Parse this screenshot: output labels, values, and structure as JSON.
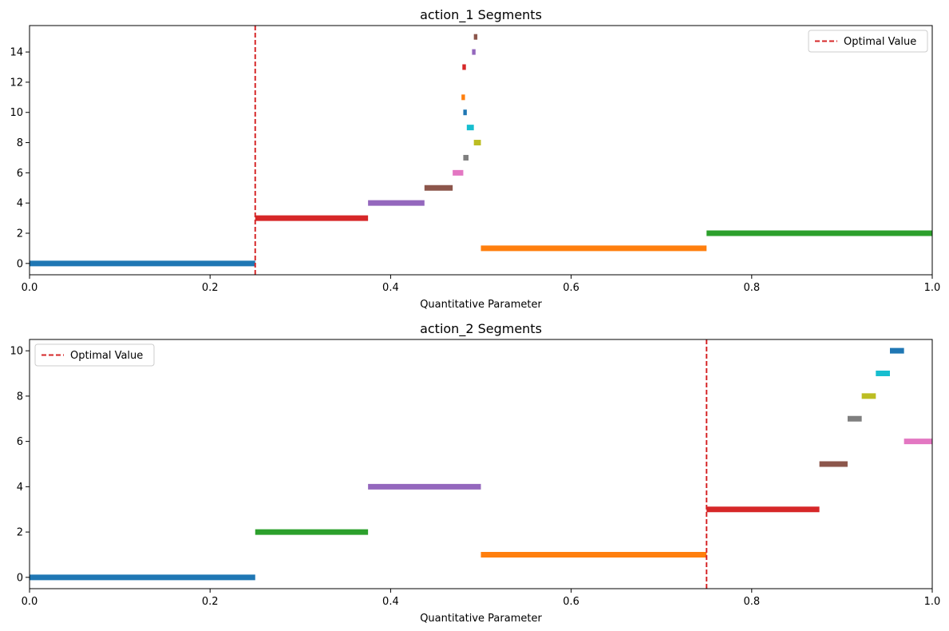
{
  "chart_data": [
    {
      "type": "segments",
      "title": "action_1 Segments",
      "xlabel": "Quantitative Parameter",
      "ylabel": "",
      "xlim": [
        0,
        1
      ],
      "ylim": [
        -0.75,
        15.75
      ],
      "xticks": [
        0,
        0.2,
        0.4,
        0.6,
        0.8,
        1.0
      ],
      "xtick_labels": [
        "0.0",
        "0.2",
        "0.4",
        "0.6",
        "0.8",
        "1.0"
      ],
      "yticks": [
        0,
        2,
        4,
        6,
        8,
        10,
        12,
        14
      ],
      "ytick_labels": [
        "0",
        "2",
        "4",
        "6",
        "8",
        "10",
        "12",
        "14"
      ],
      "grid": false,
      "legend_position": "upper-right",
      "reference_line": {
        "label": "Optimal Value",
        "x": 0.25,
        "color": "#d62728",
        "style": "dashed"
      },
      "segments": [
        {
          "y": 0,
          "x_start": 0.0,
          "x_end": 0.25,
          "color": "#1f77b4"
        },
        {
          "y": 1,
          "x_start": 0.5,
          "x_end": 0.75,
          "color": "#ff7f0e"
        },
        {
          "y": 2,
          "x_start": 0.75,
          "x_end": 1.0,
          "color": "#2ca02c"
        },
        {
          "y": 3,
          "x_start": 0.25,
          "x_end": 0.375,
          "color": "#d62728"
        },
        {
          "y": 4,
          "x_start": 0.375,
          "x_end": 0.4375,
          "color": "#9467bd"
        },
        {
          "y": 5,
          "x_start": 0.4375,
          "x_end": 0.46875,
          "color": "#8c564b"
        },
        {
          "y": 6,
          "x_start": 0.46875,
          "x_end": 0.4805,
          "color": "#e377c2"
        },
        {
          "y": 7,
          "x_start": 0.4805,
          "x_end": 0.4863,
          "color": "#7f7f7f"
        },
        {
          "y": 8,
          "x_start": 0.4922,
          "x_end": 0.5,
          "color": "#bcbd22"
        },
        {
          "y": 9,
          "x_start": 0.4844,
          "x_end": 0.4922,
          "color": "#17becf"
        },
        {
          "y": 10,
          "x_start": 0.4805,
          "x_end": 0.4844,
          "color": "#1f77b4"
        },
        {
          "y": 11,
          "x_start": 0.4785,
          "x_end": 0.4824,
          "color": "#ff7f0e"
        },
        {
          "y": 13,
          "x_start": 0.4795,
          "x_end": 0.4834,
          "color": "#d62728"
        },
        {
          "y": 14,
          "x_start": 0.4902,
          "x_end": 0.4941,
          "color": "#9467bd"
        },
        {
          "y": 15,
          "x_start": 0.4922,
          "x_end": 0.4961,
          "color": "#8c564b"
        }
      ]
    },
    {
      "type": "segments",
      "title": "action_2 Segments",
      "xlabel": "Quantitative Parameter",
      "ylabel": "",
      "xlim": [
        0,
        1
      ],
      "ylim": [
        -0.5,
        10.5
      ],
      "xticks": [
        0,
        0.2,
        0.4,
        0.6,
        0.8,
        1.0
      ],
      "xtick_labels": [
        "0.0",
        "0.2",
        "0.4",
        "0.6",
        "0.8",
        "1.0"
      ],
      "yticks": [
        0,
        2,
        4,
        6,
        8,
        10
      ],
      "ytick_labels": [
        "0",
        "2",
        "4",
        "6",
        "8",
        "10"
      ],
      "grid": false,
      "legend_position": "upper-left",
      "reference_line": {
        "label": "Optimal Value",
        "x": 0.75,
        "color": "#d62728",
        "style": "dashed"
      },
      "segments": [
        {
          "y": 0,
          "x_start": 0.0,
          "x_end": 0.25,
          "color": "#1f77b4"
        },
        {
          "y": 1,
          "x_start": 0.5,
          "x_end": 0.75,
          "color": "#ff7f0e"
        },
        {
          "y": 2,
          "x_start": 0.25,
          "x_end": 0.375,
          "color": "#2ca02c"
        },
        {
          "y": 3,
          "x_start": 0.75,
          "x_end": 0.875,
          "color": "#d62728"
        },
        {
          "y": 4,
          "x_start": 0.375,
          "x_end": 0.5,
          "color": "#9467bd"
        },
        {
          "y": 5,
          "x_start": 0.875,
          "x_end": 0.90625,
          "color": "#8c564b"
        },
        {
          "y": 6,
          "x_start": 0.96875,
          "x_end": 1.0,
          "color": "#e377c2"
        },
        {
          "y": 7,
          "x_start": 0.90625,
          "x_end": 0.921875,
          "color": "#7f7f7f"
        },
        {
          "y": 8,
          "x_start": 0.921875,
          "x_end": 0.9375,
          "color": "#bcbd22"
        },
        {
          "y": 9,
          "x_start": 0.9375,
          "x_end": 0.953125,
          "color": "#17becf"
        },
        {
          "y": 10,
          "x_start": 0.953125,
          "x_end": 0.96875,
          "color": "#1f77b4"
        }
      ]
    }
  ]
}
